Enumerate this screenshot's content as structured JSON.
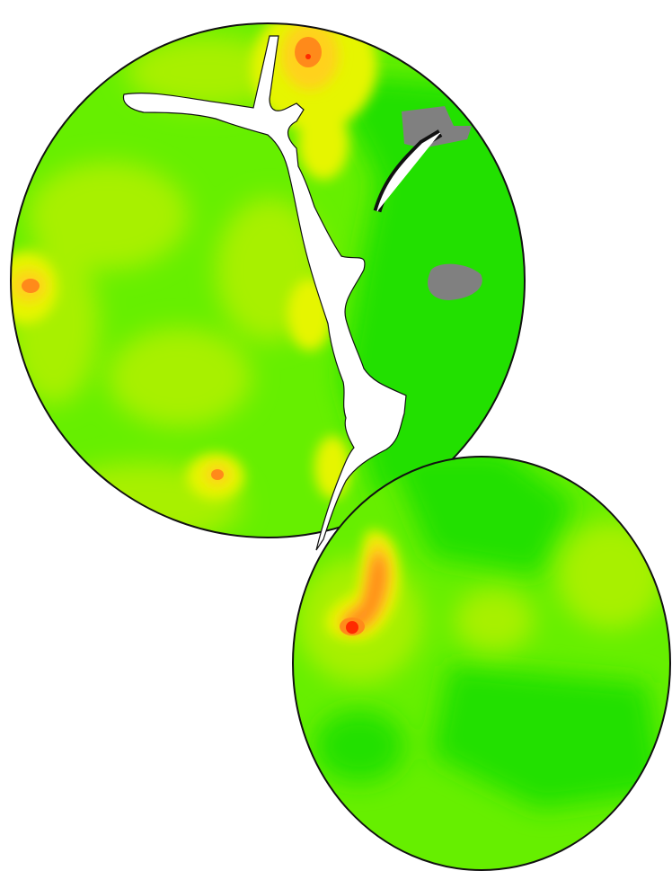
{
  "map": {
    "colors": {
      "background": "#ffffff",
      "outline": "#111111",
      "level_1": "#22e000",
      "level_2": "#66ef00",
      "level_3": "#a8f000",
      "level_4": "#e6f500",
      "level_5": "#ffd21a",
      "level_6": "#ff8a1a",
      "level_7": "#ff2a00",
      "no_data": "#808080",
      "water": "#ffffff"
    }
  }
}
